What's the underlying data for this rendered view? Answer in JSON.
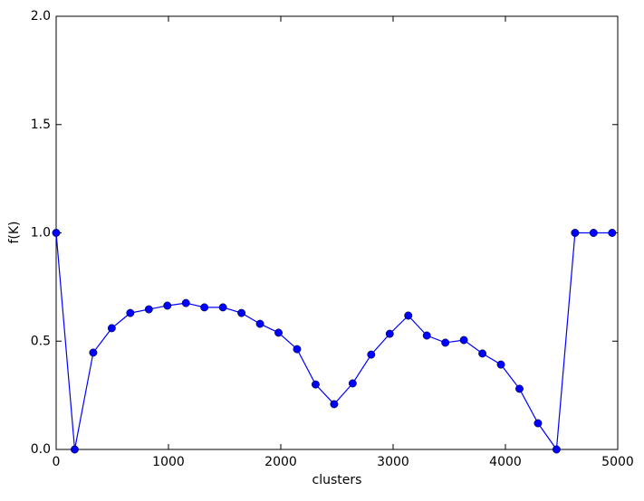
{
  "chart_data": {
    "type": "line",
    "x_label": "clusters",
    "y_label": "f(K)",
    "x": [
      0,
      165,
      330,
      495,
      660,
      825,
      990,
      1155,
      1320,
      1485,
      1650,
      1815,
      1980,
      2145,
      2310,
      2475,
      2640,
      2805,
      2970,
      3135,
      3300,
      3465,
      3630,
      3795,
      3960,
      4125,
      4290,
      4455,
      4620,
      4785,
      4950
    ],
    "series": [
      {
        "color": "#0000ff",
        "values": [
          1.0,
          0.0,
          0.447,
          0.56,
          0.63,
          0.647,
          0.664,
          0.676,
          0.656,
          0.656,
          0.63,
          0.58,
          0.539,
          0.463,
          0.3,
          0.209,
          0.305,
          0.438,
          0.534,
          0.618,
          0.526,
          0.493,
          0.505,
          0.443,
          0.392,
          0.28,
          0.121,
          0.0,
          1.0,
          1.0,
          1.0
        ]
      }
    ],
    "xlim": [
      0,
      5000
    ],
    "xticks": [
      0,
      1000,
      2000,
      3000,
      4000,
      5000
    ],
    "ylim": [
      0,
      2
    ],
    "yticks": [
      {
        "value": 0,
        "label": "0.0"
      },
      0.5,
      {
        "value": 1,
        "label": "1.0"
      },
      1.5,
      {
        "value": 2,
        "label": "2.0"
      }
    ],
    "grid": false
  }
}
